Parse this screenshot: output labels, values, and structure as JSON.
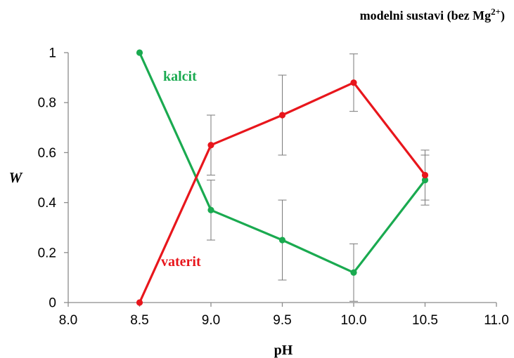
{
  "chart_data": {
    "type": "line",
    "title": "modelni  sustavi (bez Mg",
    "title_sup": "2+",
    "title_close": ")",
    "xlabel": "pH",
    "ylabel": "W",
    "xlim": [
      8.0,
      11.0
    ],
    "ylim": [
      0,
      1
    ],
    "x_ticks": [
      "8.0",
      "8.5",
      "9.0",
      "9.5",
      "10.0",
      "10.5",
      "11.0"
    ],
    "y_ticks": [
      "0",
      "0.2",
      "0.4",
      "0.6",
      "0.8",
      "1"
    ],
    "grid": false,
    "legend": "inline labels",
    "series": [
      {
        "name": "kalcit",
        "color": "#1aaa50",
        "x": [
          8.5,
          9.0,
          9.5,
          10.0,
          10.5
        ],
        "y": [
          1.0,
          0.37,
          0.25,
          0.12,
          0.49
        ],
        "err": [
          0,
          0.12,
          0.16,
          0.115,
          0.1
        ]
      },
      {
        "name": "vaterit",
        "color": "#e8161c",
        "x": [
          8.5,
          9.0,
          9.5,
          10.0,
          10.5
        ],
        "y": [
          0.0,
          0.63,
          0.75,
          0.88,
          0.51
        ],
        "err": [
          0,
          0.12,
          0.16,
          0.115,
          0.1
        ]
      }
    ]
  }
}
